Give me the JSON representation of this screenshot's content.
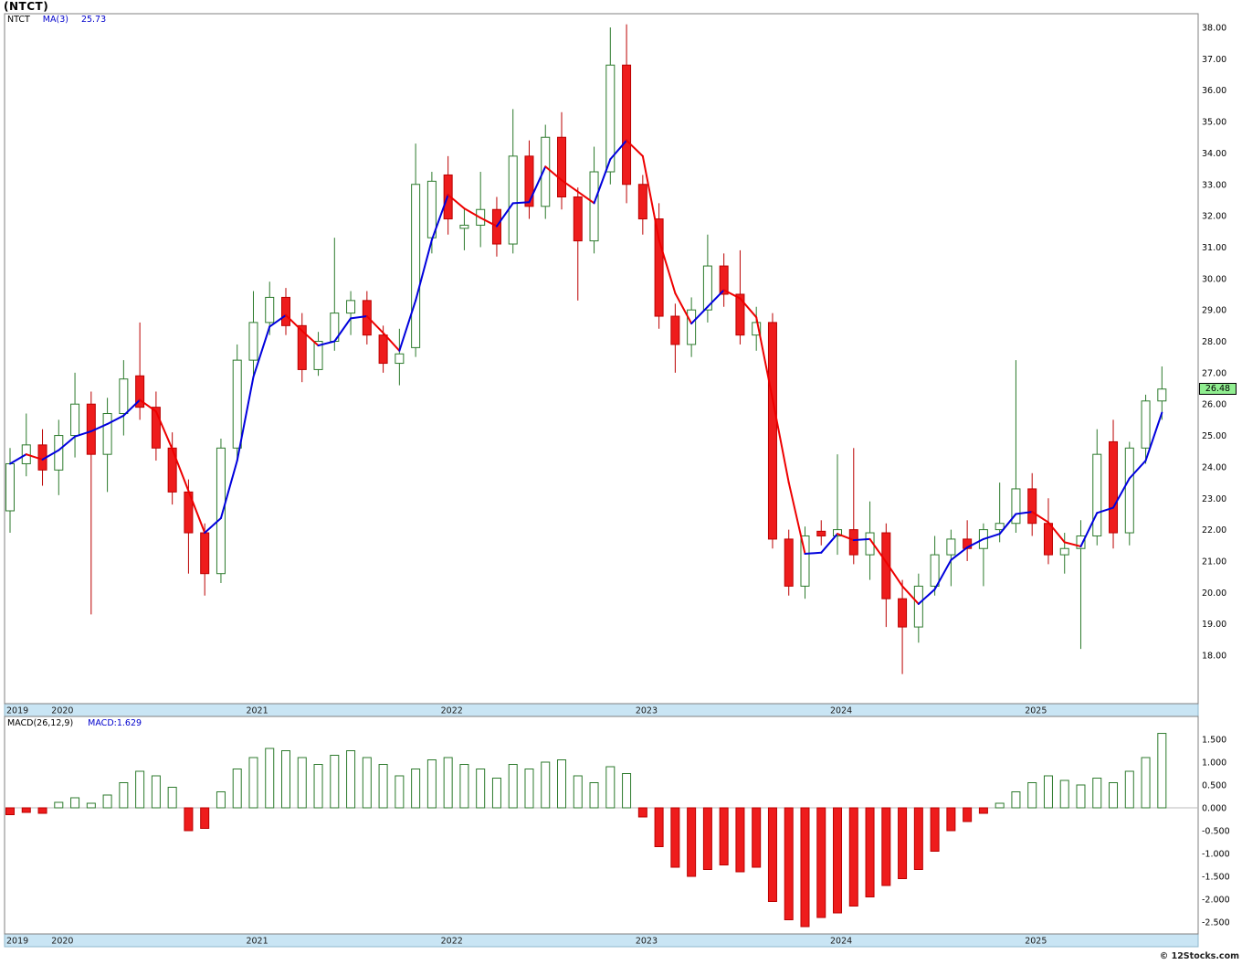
{
  "window": {
    "title": "(NTCT)",
    "watermark": "© 12Stocks.com"
  },
  "main_legend": {
    "symbol": "NTCT",
    "ma_label": "MA(3)",
    "ma_value": "25.73"
  },
  "macd_legend": {
    "label": "MACD(26,12,9)",
    "value": "MACD:1.629"
  },
  "price_tag": {
    "value": "26.48",
    "background": "#90ee90"
  },
  "axes": {
    "price_labels": [
      "38.00",
      "37.00",
      "36.00",
      "35.00",
      "34.00",
      "33.00",
      "32.00",
      "31.00",
      "30.00",
      "29.00",
      "28.00",
      "27.00",
      "26.00",
      "25.00",
      "24.00",
      "23.00",
      "22.00",
      "21.00",
      "20.00",
      "19.00",
      "18.00"
    ],
    "macd_labels": [
      "1.500",
      "1.000",
      "0.500",
      "0.000",
      "-0.500",
      "-1.000",
      "-1.500",
      "-2.000",
      "-2.500"
    ],
    "years": [
      "2019",
      "2020",
      "2021",
      "2022",
      "2023",
      "2024",
      "2025"
    ]
  },
  "colors": {
    "up": "#2c7a2c",
    "down": "#bb0000",
    "down_fill": "#ee1c1c",
    "ma_up": "#0000dd",
    "ma_down": "#ee0000",
    "axis_strip": "#c9e5f4",
    "tag_bg": "#90ee90",
    "axis_text": "#000000",
    "year_text": "#1a1a1a"
  },
  "chart_data": [
    {
      "type": "candlestick",
      "title": "NTCT monthly candlesticks with MA(3) overlay",
      "symbol": "NTCT",
      "ylim": [
        16.5,
        38.45
      ],
      "x": [
        "2019-10",
        "2019-11",
        "2019-12",
        "2020-01",
        "2020-02",
        "2020-03",
        "2020-04",
        "2020-05",
        "2020-06",
        "2020-07",
        "2020-08",
        "2020-09",
        "2020-10",
        "2020-11",
        "2020-12",
        "2021-01",
        "2021-02",
        "2021-03",
        "2021-04",
        "2021-05",
        "2021-06",
        "2021-07",
        "2021-08",
        "2021-09",
        "2021-10",
        "2021-11",
        "2021-12",
        "2022-01",
        "2022-02",
        "2022-03",
        "2022-04",
        "2022-05",
        "2022-06",
        "2022-07",
        "2022-08",
        "2022-09",
        "2022-10",
        "2022-11",
        "2022-12",
        "2023-01",
        "2023-02",
        "2023-03",
        "2023-04",
        "2023-05",
        "2023-06",
        "2023-07",
        "2023-08",
        "2023-09",
        "2023-10",
        "2023-11",
        "2023-12",
        "2024-01",
        "2024-02",
        "2024-03",
        "2024-04",
        "2024-05",
        "2024-06",
        "2024-07",
        "2024-08",
        "2024-09",
        "2024-10",
        "2024-11",
        "2024-12",
        "2025-01",
        "2025-02",
        "2025-03",
        "2025-04",
        "2025-05",
        "2025-06",
        "2025-07",
        "2025-08",
        "2025-09"
      ],
      "open": [
        22.6,
        24.1,
        24.7,
        23.9,
        25.0,
        26.0,
        24.4,
        25.7,
        26.9,
        25.9,
        24.6,
        23.2,
        21.9,
        20.6,
        24.6,
        27.4,
        28.6,
        29.4,
        28.5,
        27.1,
        28.0,
        28.9,
        29.3,
        28.2,
        27.3,
        27.8,
        31.3,
        33.3,
        31.6,
        31.7,
        32.2,
        31.1,
        33.9,
        32.3,
        34.5,
        32.6,
        31.2,
        33.4,
        36.8,
        33.0,
        31.9,
        28.8,
        27.9,
        29.0,
        30.4,
        29.5,
        28.2,
        28.6,
        21.7,
        20.2,
        21.95,
        21.8,
        22.0,
        21.2,
        21.9,
        19.8,
        18.9,
        20.2,
        21.2,
        21.7,
        21.4,
        22.0,
        22.2,
        23.3,
        22.2,
        21.2,
        21.4,
        21.8,
        24.8,
        21.9,
        24.6,
        26.1
      ],
      "high": [
        24.6,
        25.7,
        25.2,
        25.5,
        27.0,
        26.4,
        26.2,
        27.4,
        28.6,
        26.4,
        25.1,
        23.6,
        22.2,
        24.9,
        27.9,
        29.6,
        29.9,
        29.7,
        28.9,
        28.3,
        31.3,
        29.6,
        29.6,
        28.5,
        28.4,
        34.3,
        33.4,
        33.9,
        32.2,
        33.4,
        32.6,
        35.4,
        34.4,
        34.9,
        35.3,
        32.9,
        34.2,
        38.0,
        38.1,
        33.3,
        32.4,
        29.2,
        29.4,
        31.4,
        30.8,
        30.9,
        29.1,
        28.9,
        22.0,
        22.1,
        22.3,
        24.4,
        24.6,
        22.9,
        22.2,
        20.4,
        20.6,
        21.8,
        22.0,
        22.3,
        22.2,
        23.5,
        27.4,
        23.8,
        23.0,
        21.9,
        22.3,
        25.2,
        25.5,
        24.8,
        26.3,
        27.2
      ],
      "low": [
        21.9,
        23.7,
        23.4,
        23.1,
        24.3,
        19.3,
        23.2,
        25.0,
        25.5,
        24.2,
        22.8,
        20.6,
        19.9,
        20.3,
        24.2,
        26.9,
        28.2,
        28.2,
        26.7,
        26.9,
        27.7,
        28.2,
        27.9,
        27.0,
        26.6,
        27.5,
        30.8,
        31.4,
        30.9,
        31.0,
        30.7,
        30.8,
        31.9,
        31.9,
        32.2,
        29.3,
        30.8,
        33.0,
        32.4,
        31.4,
        28.4,
        27.0,
        27.5,
        28.6,
        29.1,
        27.9,
        27.7,
        21.4,
        19.9,
        19.8,
        21.5,
        21.2,
        20.9,
        20.4,
        18.9,
        17.4,
        18.4,
        19.9,
        20.2,
        21.0,
        20.2,
        21.6,
        21.9,
        21.8,
        20.9,
        20.6,
        18.2,
        21.5,
        21.4,
        21.5,
        24.1,
        25.5
      ],
      "close": [
        24.1,
        24.7,
        23.9,
        25.0,
        26.0,
        24.4,
        25.7,
        26.8,
        25.9,
        24.6,
        23.2,
        21.9,
        20.6,
        24.6,
        27.4,
        28.6,
        29.4,
        28.5,
        27.1,
        28.0,
        28.9,
        29.3,
        28.2,
        27.3,
        27.6,
        33.0,
        33.1,
        31.9,
        31.7,
        32.2,
        31.1,
        33.9,
        32.3,
        34.5,
        32.6,
        31.2,
        33.4,
        36.8,
        33.0,
        31.9,
        28.8,
        27.9,
        29.0,
        30.4,
        29.5,
        28.2,
        28.6,
        21.7,
        20.2,
        21.8,
        21.8,
        22.0,
        21.2,
        21.9,
        19.8,
        18.9,
        20.2,
        21.2,
        21.7,
        21.4,
        22.0,
        22.2,
        23.3,
        22.2,
        21.2,
        21.4,
        21.8,
        24.4,
        21.9,
        24.6,
        26.1,
        26.48
      ],
      "overlay": {
        "name": "MA(3)",
        "period": 3,
        "last_value": 25.73
      },
      "last_price": 26.48
    },
    {
      "type": "bar",
      "title": "MACD(26,12,9)",
      "x_same_as_series_0": true,
      "ylim": [
        -2.76,
        2.0
      ],
      "values": [
        -0.15,
        -0.1,
        -0.12,
        0.12,
        0.22,
        0.1,
        0.28,
        0.55,
        0.8,
        0.7,
        0.45,
        -0.5,
        -0.45,
        0.35,
        0.85,
        1.1,
        1.3,
        1.25,
        1.1,
        0.95,
        1.15,
        1.25,
        1.1,
        0.95,
        0.7,
        0.85,
        1.05,
        1.1,
        0.95,
        0.85,
        0.65,
        0.95,
        0.85,
        1.0,
        1.05,
        0.7,
        0.55,
        0.9,
        0.75,
        -0.2,
        -0.85,
        -1.3,
        -1.5,
        -1.35,
        -1.25,
        -1.4,
        -1.3,
        -2.05,
        -2.45,
        -2.6,
        -2.4,
        -2.3,
        -2.15,
        -1.95,
        -1.7,
        -1.55,
        -1.35,
        -0.95,
        -0.5,
        -0.3,
        -0.12,
        0.1,
        0.35,
        0.55,
        0.7,
        0.6,
        0.5,
        0.65,
        0.55,
        0.8,
        1.1,
        1.629
      ],
      "current": 1.629
    }
  ]
}
